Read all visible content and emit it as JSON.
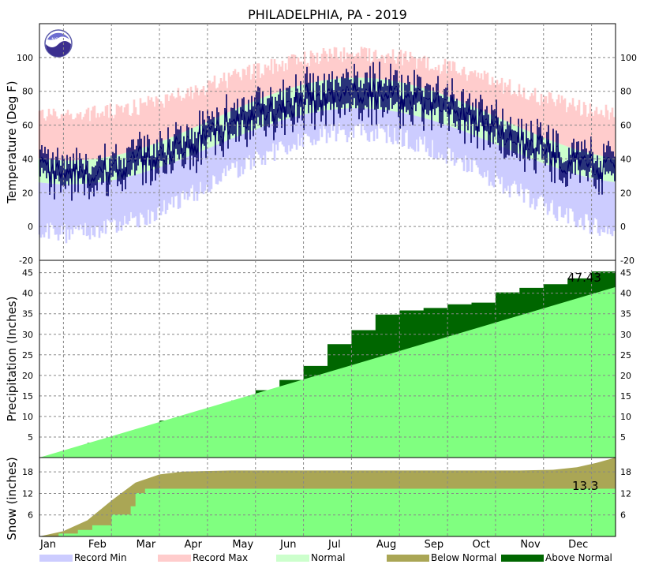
{
  "chart_data": {
    "type": "climate-summary",
    "title": "PHILADELPHIA, PA - 2019",
    "logo_text": "NOAA",
    "months": [
      "Jan",
      "Feb",
      "Mar",
      "Apr",
      "May",
      "Jun",
      "Jul",
      "Aug",
      "Sep",
      "Oct",
      "Nov",
      "Dec"
    ],
    "colors": {
      "record_min": "#ccccff",
      "record_max": "#ffcccc",
      "normal": "#ccffcc",
      "observed": "#000066",
      "below_normal": "#aaa655",
      "above_normal": "#006600",
      "normal_precip": "#80ff80"
    },
    "panels": {
      "temperature": {
        "ylabel": "Temperature (Deg F)",
        "ylim": [
          -20,
          120
        ],
        "ticks": [
          -20,
          0,
          20,
          40,
          60,
          80,
          100
        ],
        "normal_high_range": [
          39,
          88
        ],
        "normal_low_range": [
          25,
          70
        ],
        "record_high_range": [
          66,
          102
        ],
        "record_low_range": [
          -4,
          56
        ]
      },
      "precipitation": {
        "ylabel": "Precipitation (Inches)",
        "ylim": [
          0,
          48
        ],
        "ticks": [
          5,
          10,
          15,
          20,
          25,
          30,
          35,
          40,
          45
        ],
        "annotation": "47.43",
        "observed_monthly": [
          {
            "x": 0,
            "y": 0
          },
          {
            "x": 0.5,
            "y": 1.5
          },
          {
            "x": 1,
            "y": 3.6
          },
          {
            "x": 1.5,
            "y": 4.6
          },
          {
            "x": 2,
            "y": 6.8
          },
          {
            "x": 2.5,
            "y": 9.0
          },
          {
            "x": 3,
            "y": 10.2
          },
          {
            "x": 3.5,
            "y": 11.4
          },
          {
            "x": 4,
            "y": 13.9
          },
          {
            "x": 4.5,
            "y": 16.4
          },
          {
            "x": 5,
            "y": 18.9
          },
          {
            "x": 5.5,
            "y": 22.3
          },
          {
            "x": 6,
            "y": 27.6
          },
          {
            "x": 6.5,
            "y": 31.0
          },
          {
            "x": 7,
            "y": 34.8
          },
          {
            "x": 7.5,
            "y": 35.8
          },
          {
            "x": 8,
            "y": 36.4
          },
          {
            "x": 8.5,
            "y": 37.3
          },
          {
            "x": 9,
            "y": 37.7
          },
          {
            "x": 9.5,
            "y": 40.2
          },
          {
            "x": 10,
            "y": 41.3
          },
          {
            "x": 10.5,
            "y": 42.2
          },
          {
            "x": 11,
            "y": 43.6
          },
          {
            "x": 11.5,
            "y": 45.3
          },
          {
            "x": 12,
            "y": 47.4
          }
        ],
        "normal_annual": 41.5
      },
      "snow": {
        "ylabel": "Snow (inches)",
        "ylim": [
          0,
          22
        ],
        "ticks": [
          6,
          12,
          18
        ],
        "annotation": "13.3",
        "observed_points": [
          {
            "x": 0,
            "y": 0
          },
          {
            "x": 0.4,
            "y": 0.8
          },
          {
            "x": 0.8,
            "y": 1.8
          },
          {
            "x": 1.1,
            "y": 3.1
          },
          {
            "x": 1.5,
            "y": 6.1
          },
          {
            "x": 1.9,
            "y": 8.4
          },
          {
            "x": 2.0,
            "y": 12.1
          },
          {
            "x": 2.2,
            "y": 13.3
          },
          {
            "x": 12,
            "y": 13.3
          }
        ],
        "normal_points": [
          {
            "x": 0,
            "y": 0
          },
          {
            "x": 0.5,
            "y": 1.5
          },
          {
            "x": 1,
            "y": 4.5
          },
          {
            "x": 1.5,
            "y": 10.0
          },
          {
            "x": 2,
            "y": 15.0
          },
          {
            "x": 2.5,
            "y": 17.3
          },
          {
            "x": 3,
            "y": 18.1
          },
          {
            "x": 4,
            "y": 18.4
          },
          {
            "x": 10,
            "y": 18.4
          },
          {
            "x": 10.7,
            "y": 18.6
          },
          {
            "x": 11.2,
            "y": 19.3
          },
          {
            "x": 11.6,
            "y": 20.5
          },
          {
            "x": 12,
            "y": 22.0
          }
        ]
      }
    },
    "legend": [
      {
        "label": "Record Min",
        "color": "#ccccff"
      },
      {
        "label": "Record Max",
        "color": "#ffcccc"
      },
      {
        "label": "Normal",
        "color": "#ccffcc"
      },
      {
        "label": "Below Normal",
        "color": "#aaa655"
      },
      {
        "label": "Above Normal",
        "color": "#006600"
      }
    ]
  }
}
